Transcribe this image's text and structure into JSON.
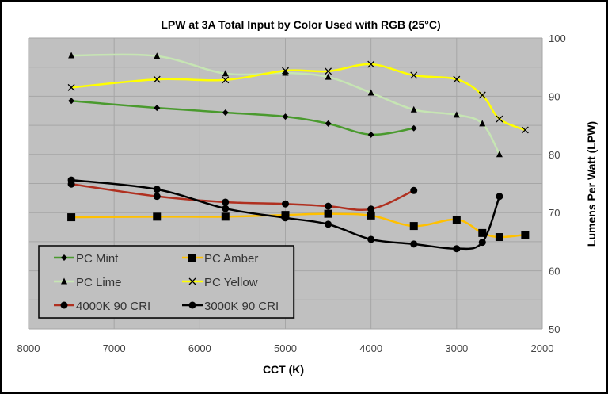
{
  "chart_data": {
    "type": "line",
    "title": "LPW at 3A Total Input by Color Used with RGB (25°C)",
    "xlabel": "CCT (K)",
    "ylabel": "Lumens Per Watt (LPW)",
    "xlim": [
      8000,
      2000
    ],
    "ylim": [
      50,
      100
    ],
    "x_reversed": true,
    "y_axis_side": "right",
    "grid": true,
    "legend_placement": "bottom-left",
    "xticks": [
      "8000",
      "7000",
      "6000",
      "5000",
      "4000",
      "3000",
      "2000"
    ],
    "yticks": [
      "100",
      "90",
      "80",
      "70",
      "60",
      "50"
    ],
    "colors": {
      "plot_bg": "#c0c0c0",
      "grid": "#a6a6a6"
    },
    "series": [
      {
        "name": "PC Mint",
        "color": "#4a9a2e",
        "marker": "diamond",
        "x": [
          7500,
          6500,
          5700,
          5000,
          4500,
          4000,
          3500
        ],
        "y": [
          89.2,
          88.0,
          87.2,
          86.5,
          85.3,
          83.4,
          84.5
        ]
      },
      {
        "name": "PC Amber",
        "color": "#ffc000",
        "marker": "square",
        "x": [
          7500,
          6500,
          5700,
          5000,
          4500,
          4000,
          3500,
          3000,
          2700,
          2500,
          2200
        ],
        "y": [
          69.2,
          69.3,
          69.3,
          69.6,
          69.8,
          69.5,
          67.7,
          68.8,
          66.5,
          65.8,
          66.2
        ]
      },
      {
        "name": "PC Lime",
        "color": "#c6e5b3",
        "marker": "triangle",
        "x": [
          7500,
          6500,
          5700,
          5000,
          4500,
          4000,
          3500,
          3000,
          2700,
          2500
        ],
        "y": [
          97.0,
          96.9,
          93.9,
          94.0,
          93.3,
          90.6,
          87.7,
          86.8,
          85.3,
          80.0
        ]
      },
      {
        "name": "PC Yellow",
        "color": "#ffff00",
        "marker": "x",
        "x": [
          7500,
          6500,
          5700,
          5000,
          4500,
          4000,
          3500,
          3000,
          2700,
          2500,
          2200
        ],
        "y": [
          91.5,
          92.9,
          92.8,
          94.4,
          94.3,
          95.5,
          93.6,
          92.9,
          90.2,
          86.1,
          84.2
        ]
      },
      {
        "name": "4000K 90 CRI",
        "color": "#b03020",
        "marker": "circle",
        "x": [
          7500,
          6500,
          5700,
          5000,
          4500,
          4000,
          3500
        ],
        "y": [
          74.9,
          72.8,
          71.8,
          71.5,
          71.1,
          70.6,
          73.8
        ]
      },
      {
        "name": "3000K 90 CRI",
        "color": "#000000",
        "marker": "circle",
        "x": [
          7500,
          6500,
          5700,
          5000,
          4500,
          4000,
          3500,
          3000,
          2700,
          2500
        ],
        "y": [
          75.6,
          74.0,
          70.7,
          69.1,
          68.0,
          65.4,
          64.6,
          63.8,
          64.9,
          72.8
        ]
      }
    ]
  }
}
